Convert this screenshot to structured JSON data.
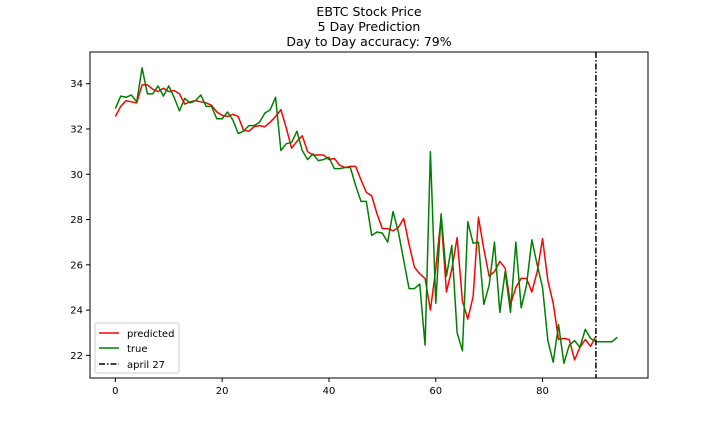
{
  "chart_data": {
    "type": "line",
    "title_lines": [
      "EBTC Stock Price",
      "5 Day Prediction",
      "Day to Day accuracy: 79%"
    ],
    "xlim": [
      -4.75,
      99.75
    ],
    "ylim": [
      21.0,
      35.4
    ],
    "x_ticks": [
      0,
      20,
      40,
      60,
      80
    ],
    "y_ticks": [
      22,
      24,
      26,
      28,
      30,
      32,
      34
    ],
    "grid": false,
    "legend_position": "lower-left",
    "vline": {
      "x": 90,
      "label": "april 27",
      "color": "#000000",
      "style": "dashdot"
    },
    "series": [
      {
        "name": "predicted",
        "color": "#ff0000",
        "x_start": 0,
        "values": [
          32.55,
          33.0,
          33.25,
          33.2,
          33.15,
          33.95,
          33.95,
          33.75,
          33.65,
          33.8,
          33.65,
          33.7,
          33.55,
          33.1,
          33.2,
          33.25,
          33.2,
          33.15,
          33.05,
          32.75,
          32.6,
          32.55,
          32.65,
          32.55,
          31.95,
          31.9,
          32.1,
          32.15,
          32.1,
          32.3,
          32.55,
          32.85,
          32.05,
          31.15,
          31.45,
          31.7,
          31.0,
          30.85,
          30.85,
          30.85,
          30.65,
          30.7,
          30.4,
          30.3,
          30.35,
          30.35,
          29.75,
          29.2,
          29.05,
          28.25,
          27.6,
          27.6,
          27.5,
          27.65,
          28.05,
          26.9,
          25.9,
          25.6,
          25.4,
          24.0,
          25.8,
          28.1,
          24.8,
          25.8,
          27.2,
          24.4,
          23.6,
          24.6,
          28.1,
          26.7,
          25.5,
          25.7,
          26.15,
          25.85,
          24.25,
          25.0,
          25.4,
          25.4,
          24.8,
          25.7,
          27.15,
          25.3,
          24.3,
          22.7,
          22.75,
          22.7,
          21.8,
          22.35,
          22.7,
          22.4,
          22.85
        ]
      },
      {
        "name": "true",
        "color": "#008000",
        "x_start": 0,
        "values": [
          32.9,
          33.45,
          33.4,
          33.5,
          33.2,
          34.7,
          33.55,
          33.55,
          33.9,
          33.45,
          33.9,
          33.4,
          32.8,
          33.35,
          33.15,
          33.25,
          33.5,
          33.0,
          33.0,
          32.45,
          32.45,
          32.75,
          32.4,
          31.8,
          31.9,
          32.15,
          32.15,
          32.3,
          32.7,
          32.85,
          33.4,
          31.05,
          31.35,
          31.4,
          31.9,
          31.05,
          30.65,
          30.9,
          30.6,
          30.65,
          30.75,
          30.25,
          30.25,
          30.3,
          30.3,
          29.5,
          28.8,
          28.8,
          27.3,
          27.45,
          27.4,
          27.0,
          28.35,
          27.45,
          26.2,
          24.95,
          24.95,
          25.15,
          22.45,
          31.0,
          24.3,
          28.25,
          25.5,
          26.85,
          23.0,
          22.2,
          27.9,
          26.95,
          27.0,
          24.25,
          25.1,
          27.0,
          23.9,
          25.7,
          23.9,
          27.0,
          24.1,
          25.1,
          27.1,
          26.0,
          25.0,
          22.65,
          21.7,
          23.35,
          21.65,
          22.45,
          22.65,
          22.35,
          23.15,
          22.75,
          22.6,
          22.6,
          22.6,
          22.6,
          22.8
        ]
      }
    ]
  }
}
